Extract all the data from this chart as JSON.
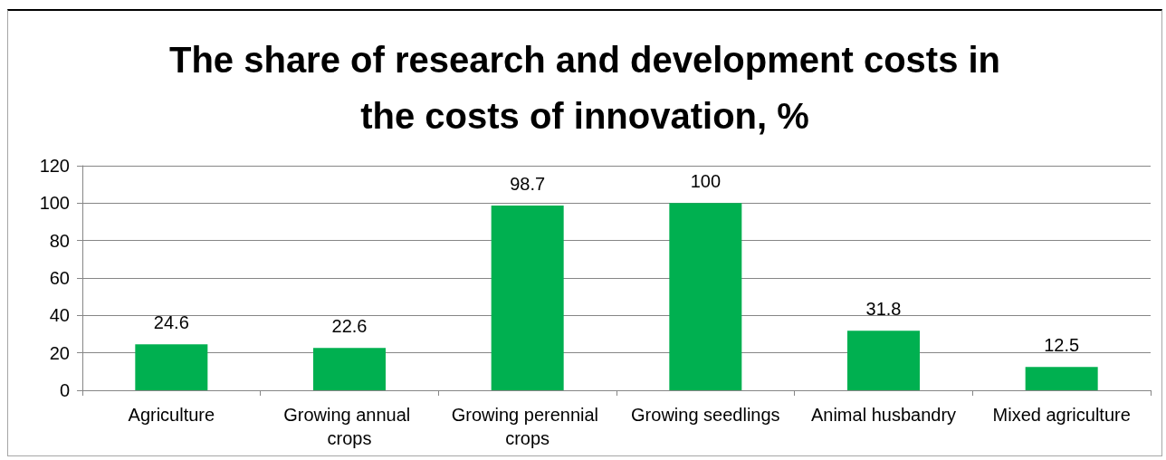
{
  "chart_data": {
    "type": "bar",
    "title": "The share of research and development costs in\nthe costs of innovation, %",
    "categories": [
      "Agriculture",
      "Growing annual crops",
      "Growing perennial crops",
      "Growing seedlings",
      "Animal husbandry",
      "Mixed agriculture"
    ],
    "values": [
      24.6,
      22.6,
      98.7,
      100,
      31.8,
      12.5
    ],
    "color": "#00b050",
    "ylim": [
      0,
      120
    ],
    "yticks": [
      0,
      20,
      40,
      60,
      80,
      100,
      120
    ],
    "grid": "y",
    "data_labels": true
  }
}
